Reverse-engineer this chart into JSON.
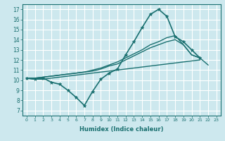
{
  "xlabel": "Humidex (Indice chaleur)",
  "bg_color": "#cde8ee",
  "grid_color": "#ffffff",
  "line_color": "#1a7070",
  "xlim": [
    -0.5,
    23.5
  ],
  "ylim": [
    6.5,
    17.5
  ],
  "xticks": [
    0,
    1,
    2,
    3,
    4,
    5,
    6,
    7,
    8,
    9,
    10,
    11,
    12,
    13,
    14,
    15,
    16,
    17,
    18,
    19,
    20,
    21,
    22,
    23
  ],
  "yticks": [
    7,
    8,
    9,
    10,
    11,
    12,
    13,
    14,
    15,
    16,
    17
  ],
  "line1": {
    "x": [
      0,
      1,
      2,
      3,
      4,
      5,
      6,
      7,
      8,
      9,
      10,
      11,
      12,
      13,
      14,
      15,
      16,
      17,
      18,
      19,
      20,
      21
    ],
    "y": [
      10.2,
      10.1,
      10.2,
      9.8,
      9.6,
      9.0,
      8.3,
      7.5,
      8.9,
      10.1,
      10.7,
      11.1,
      12.5,
      13.8,
      15.2,
      16.5,
      17.0,
      16.3,
      14.3,
      13.8,
      13.0,
      12.2
    ]
  },
  "line2": {
    "x": [
      0,
      1,
      2,
      3,
      4,
      5,
      6,
      7,
      8,
      9,
      10,
      11,
      12,
      13,
      14,
      15,
      16,
      17,
      18,
      19,
      20,
      21,
      22,
      23
    ],
    "y": [
      10.2,
      10.2,
      10.3,
      10.4,
      10.5,
      10.6,
      10.7,
      10.8,
      11.0,
      11.2,
      11.5,
      11.8,
      12.2,
      12.6,
      13.0,
      13.5,
      13.8,
      14.2,
      14.4,
      13.5,
      12.5,
      12.2,
      11.5,
      null
    ]
  },
  "line3": {
    "x": [
      0,
      1,
      2,
      3,
      4,
      5,
      6,
      7,
      8,
      9,
      10,
      11,
      12,
      13,
      14,
      15,
      16,
      17,
      18,
      19,
      20,
      21,
      22,
      23
    ],
    "y": [
      10.2,
      10.2,
      10.3,
      10.4,
      10.5,
      10.6,
      10.7,
      10.8,
      10.9,
      11.1,
      11.4,
      11.6,
      12.0,
      12.4,
      12.8,
      13.2,
      13.5,
      13.8,
      14.0,
      13.5,
      12.5,
      12.2,
      null,
      null
    ]
  },
  "line4": {
    "x": [
      0,
      1,
      2,
      3,
      4,
      5,
      6,
      7,
      8,
      9,
      10,
      11,
      12,
      13,
      14,
      15,
      16,
      17,
      18,
      19,
      20,
      21,
      22,
      23
    ],
    "y": [
      10.2,
      10.1,
      10.1,
      10.2,
      10.3,
      10.4,
      10.5,
      10.6,
      10.7,
      10.8,
      10.9,
      11.0,
      11.1,
      11.2,
      11.3,
      11.4,
      11.5,
      11.6,
      11.7,
      11.8,
      11.9,
      12.0,
      null,
      null
    ]
  }
}
